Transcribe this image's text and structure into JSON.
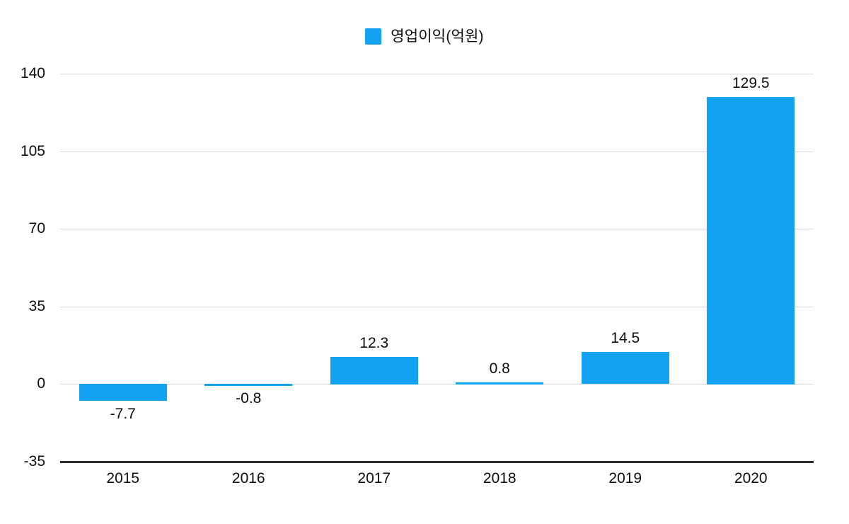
{
  "legend": {
    "label": "영업이익(억원)"
  },
  "colors": {
    "bar": "#14a2f2",
    "gridline": "#d9d9d9",
    "axis_line": "#2b2b2b",
    "text": "#0d0d0d",
    "background": "#ffffff"
  },
  "chart_data": {
    "type": "bar",
    "title": "",
    "xlabel": "",
    "ylabel": "",
    "series_name": "영업이익(억원)",
    "categories": [
      "2015",
      "2016",
      "2017",
      "2018",
      "2019",
      "2020"
    ],
    "values": [
      -7.7,
      -0.8,
      12.3,
      0.8,
      14.5,
      129.5
    ],
    "value_labels": [
      "-7.7",
      "-0.8",
      "12.3",
      "0.8",
      "14.5",
      "129.5"
    ],
    "yticks": [
      140,
      105,
      70,
      35,
      0,
      -35
    ],
    "ylim": [
      -35,
      140
    ],
    "grid": true,
    "legend_position": "top-center",
    "value_label_position": "outside-end"
  }
}
